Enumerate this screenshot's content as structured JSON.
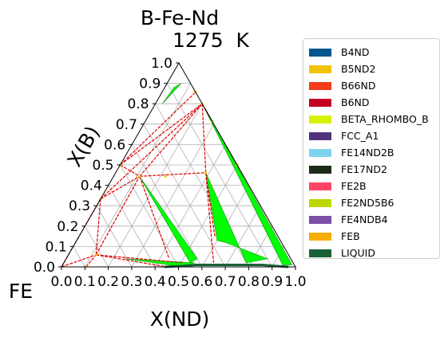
{
  "chart_data": {
    "type": "ternary phase diagram",
    "title": "B-Fe-Nd",
    "subtitle": "1275  K",
    "corner_labels": {
      "bottom_left": "FE",
      "top": "",
      "bottom_right": ""
    },
    "xlabel": "X(ND)",
    "ylabel": "X(B)",
    "x_ticks": [
      "0.0",
      "0.1",
      "0.2",
      "0.3",
      "0.4",
      "0.5",
      "0.6",
      "0.7",
      "0.8",
      "0.9",
      "1.0"
    ],
    "y_ticks": [
      "0.0",
      "0.1",
      "0.2",
      "0.3",
      "0.4",
      "0.5",
      "0.6",
      "0.7",
      "0.8",
      "0.9",
      "1.0"
    ],
    "xlim": [
      0,
      1
    ],
    "ylim": [
      0,
      1
    ],
    "grid": true,
    "legend_position": "right",
    "legend": [
      {
        "name": "B4ND",
        "color": "#00558c"
      },
      {
        "name": "B5ND2",
        "color": "#f2c200"
      },
      {
        "name": "B66ND",
        "color": "#f53b1a"
      },
      {
        "name": "B6ND",
        "color": "#c40020"
      },
      {
        "name": "BETA_RHOMBO_B",
        "color": "#d6f200"
      },
      {
        "name": "FCC_A1",
        "color": "#50327a"
      },
      {
        "name": "FE14ND2B",
        "color": "#7fd2ec"
      },
      {
        "name": "FE17ND2",
        "color": "#1c2b17"
      },
      {
        "name": "FE2B",
        "color": "#ff4467"
      },
      {
        "name": "FE2ND5B6",
        "color": "#bcd800"
      },
      {
        "name": "FE4NDB4",
        "color": "#7b4ea8"
      },
      {
        "name": "FEB",
        "color": "#f7ad00"
      },
      {
        "name": "LIQUID",
        "color": "#1a6137"
      }
    ],
    "compound_points": [
      {
        "nd": 0.0,
        "b": 0.5
      },
      {
        "nd": 0.0,
        "b": 0.333
      },
      {
        "nd": 0.105,
        "b": 0.0
      },
      {
        "nd": 0.118,
        "b": 0.059
      },
      {
        "nd": 0.222,
        "b": 0.444
      },
      {
        "nd": 0.111,
        "b": 0.444
      },
      {
        "nd": 0.143,
        "b": 0.857
      },
      {
        "nd": 0.2,
        "b": 0.8
      },
      {
        "nd": 0.286,
        "b": 0.714
      },
      {
        "nd": 0.385,
        "b": 0.462
      },
      {
        "nd": 0.5,
        "b": 0.5
      }
    ],
    "tie_lines": [
      {
        "from": {
          "nd": 0.0,
          "b": 0.5
        },
        "to": {
          "nd": 0.143,
          "b": 0.857
        }
      },
      {
        "from": {
          "nd": 0.0,
          "b": 0.5
        },
        "to": {
          "nd": 0.2,
          "b": 0.8
        }
      },
      {
        "from": {
          "nd": 0.0,
          "b": 0.5
        },
        "to": {
          "nd": 0.111,
          "b": 0.444
        }
      },
      {
        "from": {
          "nd": 0.0,
          "b": 0.333
        },
        "to": {
          "nd": 0.111,
          "b": 0.444
        }
      },
      {
        "from": {
          "nd": 0.0,
          "b": 0.333
        },
        "to": {
          "nd": 0.2,
          "b": 0.8
        }
      },
      {
        "from": {
          "nd": 0.0,
          "b": 0.333
        },
        "to": {
          "nd": 0.118,
          "b": 0.059
        }
      },
      {
        "from": {
          "nd": 0.0,
          "b": 0.333
        },
        "to": {
          "nd": 0.0,
          "b": 0.0
        }
      },
      {
        "from": {
          "nd": 0.0,
          "b": 0.0
        },
        "to": {
          "nd": 0.118,
          "b": 0.059
        }
      },
      {
        "from": {
          "nd": 0.105,
          "b": 0.0
        },
        "to": {
          "nd": 0.118,
          "b": 0.059
        }
      },
      {
        "from": {
          "nd": 0.118,
          "b": 0.059
        },
        "to": {
          "nd": 0.111,
          "b": 0.444
        }
      },
      {
        "from": {
          "nd": 0.118,
          "b": 0.059
        },
        "to": {
          "nd": 0.45,
          "b": 0.0
        }
      },
      {
        "from": {
          "nd": 0.118,
          "b": 0.059
        },
        "to": {
          "nd": 0.51,
          "b": 0.02
        }
      },
      {
        "from": {
          "nd": 0.111,
          "b": 0.444
        },
        "to": {
          "nd": 0.2,
          "b": 0.8
        }
      },
      {
        "from": {
          "nd": 0.111,
          "b": 0.444
        },
        "to": {
          "nd": 0.385,
          "b": 0.462
        }
      },
      {
        "from": {
          "nd": 0.111,
          "b": 0.444
        },
        "to": {
          "nd": 0.44,
          "b": 0.04
        }
      },
      {
        "from": {
          "nd": 0.2,
          "b": 0.8
        },
        "to": {
          "nd": 0.385,
          "b": 0.462
        }
      },
      {
        "from": {
          "nd": 0.2,
          "b": 0.8
        },
        "to": {
          "nd": 0.286,
          "b": 0.714
        }
      },
      {
        "from": {
          "nd": 0.385,
          "b": 0.462
        },
        "to": {
          "nd": 0.64,
          "b": 0.02
        }
      },
      {
        "from": {
          "nd": 0.385,
          "b": 0.462
        },
        "to": {
          "nd": 0.58,
          "b": 0.15
        }
      }
    ],
    "regions": [
      {
        "name": "two-phase band near B corner",
        "color": "#00ff00",
        "vertices": [
          {
            "nd": 0.04,
            "b": 0.88
          },
          {
            "nd": 0.06,
            "b": 0.9
          },
          {
            "nd": 0.03,
            "b": 0.8
          }
        ]
      },
      {
        "name": "liquid + B-rich band",
        "color": "#00ff00",
        "vertices": [
          {
            "nd": 0.2,
            "b": 0.8
          },
          {
            "nd": 0.94,
            "b": 0.01
          },
          {
            "nd": 0.98,
            "b": 0.01
          },
          {
            "nd": 0.24,
            "b": 0.76
          }
        ]
      },
      {
        "name": "region right of B4ND",
        "color": "#00ff00",
        "vertices": [
          {
            "nd": 0.385,
            "b": 0.462
          },
          {
            "nd": 0.6,
            "b": 0.13
          },
          {
            "nd": 0.64,
            "b": 0.12
          },
          {
            "nd": 0.86,
            "b": 0.04
          },
          {
            "nd": 0.78,
            "b": 0.02
          }
        ]
      },
      {
        "name": "region of FE2ND5B6",
        "color": "#00ff00",
        "vertices": [
          {
            "nd": 0.11,
            "b": 0.444
          },
          {
            "nd": 0.56,
            "b": 0.04
          },
          {
            "nd": 0.54,
            "b": 0.02
          }
        ]
      },
      {
        "name": "bottom sliver",
        "color": "#00ff00",
        "vertices": [
          {
            "nd": 0.25,
            "b": 0.04
          },
          {
            "nd": 0.56,
            "b": 0.02
          },
          {
            "nd": 0.52,
            "b": 0.0
          }
        ]
      }
    ],
    "liquidus_boundary": [
      {
        "nd": 0.44,
        "b": 0.0
      },
      {
        "nd": 0.52,
        "b": 0.005
      },
      {
        "nd": 0.57,
        "b": 0.01
      },
      {
        "nd": 0.7,
        "b": 0.01
      },
      {
        "nd": 0.85,
        "b": 0.01
      },
      {
        "nd": 0.97,
        "b": 0.0
      }
    ]
  }
}
